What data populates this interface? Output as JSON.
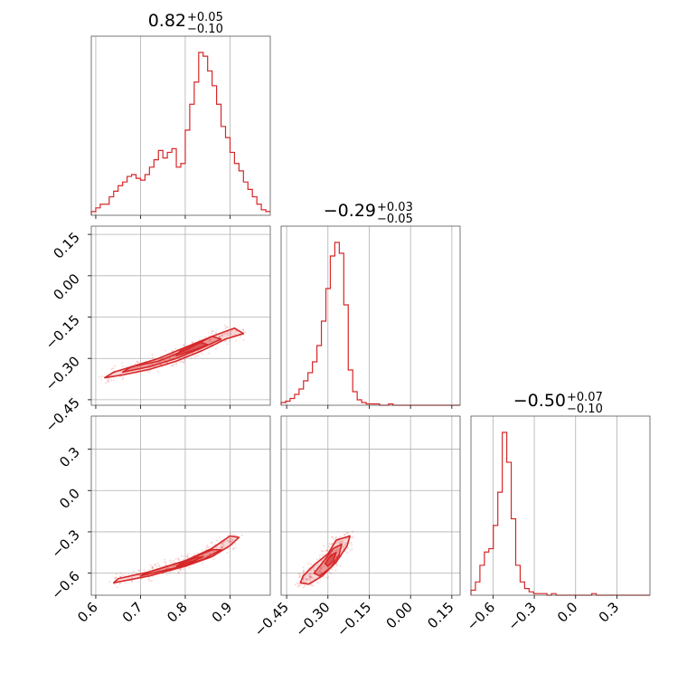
{
  "chart_data": {
    "type": "corner",
    "color": "#d62728",
    "parameters": [
      {
        "title_center": "0.82",
        "title_plus": "+0.05",
        "title_minus": "−0.10",
        "range": [
          0.59,
          0.99
        ],
        "ticks": [
          0.6,
          0.7,
          0.8,
          0.9
        ],
        "tick_labels": [
          "0.6",
          "0.7",
          "0.8",
          "0.9"
        ],
        "hist": {
          "bin_start": 0.59,
          "bin_width": 0.01,
          "counts": [
            2,
            4,
            6,
            6,
            10,
            13,
            16,
            18,
            21,
            22,
            20,
            19,
            22,
            26,
            30,
            35,
            31,
            34,
            36,
            26,
            28,
            46,
            60,
            72,
            88,
            86,
            78,
            70,
            60,
            48,
            42,
            34,
            28,
            24,
            18,
            14,
            10,
            6,
            3,
            2
          ],
          "max": 88
        }
      },
      {
        "title_center": "−0.29",
        "title_plus": "+0.03",
        "title_minus": "−0.05",
        "range": [
          -0.47,
          0.18
        ],
        "ticks": [
          -0.45,
          -0.3,
          -0.15,
          0.0,
          0.15
        ],
        "tick_labels": [
          "−0.45",
          "−0.30",
          "−0.15",
          "0.00",
          "0.15"
        ],
        "hist": {
          "bin_start": -0.47,
          "bin_width": 0.01625,
          "counts": [
            2,
            3,
            5,
            8,
            12,
            18,
            24,
            32,
            44,
            62,
            86,
            110,
            120,
            112,
            74,
            26,
            10,
            4,
            2,
            1,
            1,
            1,
            0,
            0,
            1,
            0,
            0,
            0,
            0,
            0,
            0,
            0,
            0,
            0,
            0,
            0,
            0,
            0,
            0,
            0
          ],
          "max": 120
        }
      },
      {
        "title_center": "−0.50",
        "title_plus": "+0.07",
        "title_minus": "−0.10",
        "range": [
          -0.76,
          0.54
        ],
        "ticks": [
          -0.6,
          -0.3,
          0.0,
          0.3
        ],
        "tick_labels": [
          "−0.6",
          "−0.3",
          "0.0",
          "0.3"
        ],
        "hist": {
          "bin_start": -0.76,
          "bin_width": 0.0325,
          "counts": [
            3,
            8,
            18,
            26,
            28,
            42,
            62,
            98,
            80,
            46,
            18,
            8,
            4,
            2,
            1,
            1,
            1,
            0,
            1,
            0,
            0,
            0,
            0,
            0,
            0,
            0,
            0,
            1,
            0,
            0,
            0,
            0,
            0,
            0,
            0,
            0,
            0,
            0,
            0,
            0
          ],
          "max": 98
        }
      }
    ],
    "pairs": [
      {
        "row": 1,
        "col": 0,
        "contours": [
          [
            [
              0.62,
              -0.37
            ],
            [
              0.66,
              -0.36
            ],
            [
              0.72,
              -0.34
            ],
            [
              0.78,
              -0.31
            ],
            [
              0.84,
              -0.27
            ],
            [
              0.89,
              -0.23
            ],
            [
              0.93,
              -0.21
            ],
            [
              0.91,
              -0.19
            ],
            [
              0.86,
              -0.22
            ],
            [
              0.8,
              -0.27
            ],
            [
              0.74,
              -0.31
            ],
            [
              0.68,
              -0.33
            ],
            [
              0.64,
              -0.35
            ]
          ],
          [
            [
              0.66,
              -0.35
            ],
            [
              0.72,
              -0.33
            ],
            [
              0.78,
              -0.3
            ],
            [
              0.84,
              -0.26
            ],
            [
              0.88,
              -0.23
            ],
            [
              0.86,
              -0.22
            ],
            [
              0.8,
              -0.26
            ],
            [
              0.74,
              -0.3
            ],
            [
              0.68,
              -0.33
            ]
          ],
          [
            [
              0.78,
              -0.29
            ],
            [
              0.82,
              -0.27
            ],
            [
              0.85,
              -0.25
            ],
            [
              0.83,
              -0.24
            ],
            [
              0.79,
              -0.27
            ]
          ]
        ]
      },
      {
        "row": 2,
        "col": 0,
        "contours": [
          [
            [
              0.64,
              -0.67
            ],
            [
              0.72,
              -0.62
            ],
            [
              0.8,
              -0.55
            ],
            [
              0.86,
              -0.48
            ],
            [
              0.9,
              -0.4
            ],
            [
              0.92,
              -0.34
            ],
            [
              0.9,
              -0.33
            ],
            [
              0.86,
              -0.42
            ],
            [
              0.8,
              -0.51
            ],
            [
              0.72,
              -0.59
            ],
            [
              0.65,
              -0.64
            ]
          ],
          [
            [
              0.7,
              -0.62
            ],
            [
              0.78,
              -0.56
            ],
            [
              0.84,
              -0.5
            ],
            [
              0.88,
              -0.43
            ],
            [
              0.86,
              -0.43
            ],
            [
              0.8,
              -0.51
            ],
            [
              0.72,
              -0.59
            ]
          ],
          [
            [
              0.78,
              -0.55
            ],
            [
              0.82,
              -0.51
            ],
            [
              0.84,
              -0.48
            ],
            [
              0.82,
              -0.49
            ],
            [
              0.79,
              -0.53
            ]
          ]
        ]
      },
      {
        "row": 2,
        "col": 1,
        "contours": [
          [
            [
              -0.39,
              -0.62
            ],
            [
              -0.35,
              -0.54
            ],
            [
              -0.3,
              -0.46
            ],
            [
              -0.27,
              -0.36
            ],
            [
              -0.22,
              -0.33
            ],
            [
              -0.23,
              -0.4
            ],
            [
              -0.27,
              -0.52
            ],
            [
              -0.32,
              -0.62
            ],
            [
              -0.37,
              -0.68
            ],
            [
              -0.4,
              -0.67
            ]
          ],
          [
            [
              -0.35,
              -0.6
            ],
            [
              -0.31,
              -0.5
            ],
            [
              -0.28,
              -0.42
            ],
            [
              -0.25,
              -0.39
            ],
            [
              -0.26,
              -0.47
            ],
            [
              -0.29,
              -0.56
            ],
            [
              -0.33,
              -0.62
            ]
          ],
          [
            [
              -0.31,
              -0.53
            ],
            [
              -0.29,
              -0.47
            ],
            [
              -0.27,
              -0.45
            ],
            [
              -0.28,
              -0.51
            ],
            [
              -0.3,
              -0.55
            ]
          ]
        ]
      }
    ]
  }
}
